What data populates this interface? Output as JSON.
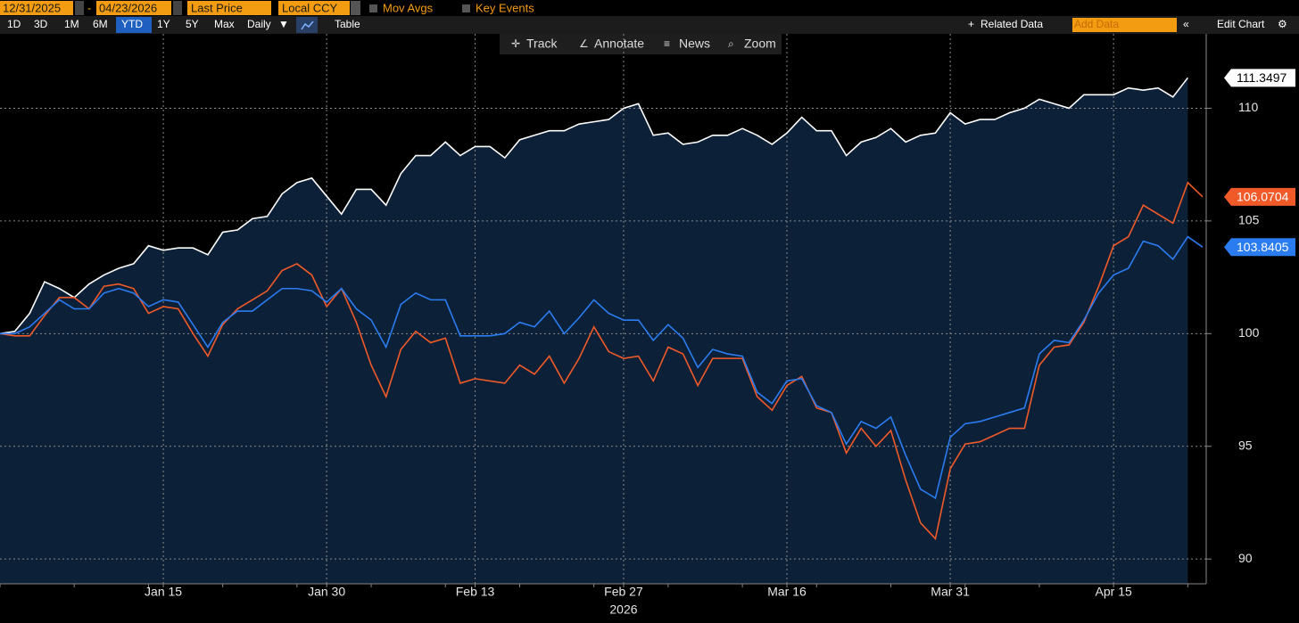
{
  "toolbar": {
    "start_date": "12/31/2025",
    "end_date": "04/23/2026",
    "field": "Last Price",
    "currency": "Local CCY",
    "mov_avgs": "Mov Avgs",
    "key_events": "Key Events",
    "periods": [
      "1D",
      "3D",
      "1M",
      "6M",
      "YTD",
      "1Y",
      "5Y",
      "Max"
    ],
    "active_period": "YTD",
    "frequency": "Daily",
    "table": "Table",
    "related_data": "Related Data",
    "add_data": "Add Data",
    "edit_chart": "Edit Chart",
    "tools": [
      "Track",
      "Annotate",
      "News",
      "Zoom"
    ]
  },
  "chart_data": {
    "type": "line",
    "xlabel": "2026",
    "categories": [
      null,
      null,
      null,
      null,
      null,
      null,
      null,
      null,
      null,
      null,
      null,
      "Jan 15",
      null,
      null,
      null,
      null,
      null,
      null,
      null,
      null,
      null,
      null,
      "Jan 30",
      null,
      null,
      null,
      null,
      null,
      null,
      null,
      null,
      null,
      "Feb 13",
      null,
      null,
      null,
      null,
      null,
      null,
      null,
      null,
      null,
      "Feb 27",
      null,
      null,
      null,
      null,
      null,
      null,
      null,
      null,
      null,
      null,
      "Mar 16",
      null,
      null,
      null,
      null,
      null,
      null,
      null,
      null,
      null,
      null,
      "Mar 31",
      null,
      null,
      null,
      null,
      null,
      null,
      null,
      null,
      null,
      null,
      "Apr 15",
      null,
      null,
      null,
      null,
      null,
      null
    ],
    "series": [
      {
        "color": "#ffffff",
        "fill": "#0c2038",
        "values": [
          100,
          100.1,
          100.9,
          102.3,
          102.0,
          101.6,
          102.2,
          102.6,
          102.9,
          103.1,
          103.9,
          103.7,
          103.8,
          103.8,
          103.5,
          104.5,
          104.6,
          105.1,
          105.2,
          106.2,
          106.7,
          106.9,
          106.1,
          105.3,
          106.4,
          106.4,
          105.7,
          107.1,
          107.9,
          107.9,
          108.5,
          107.9,
          108.3,
          108.3,
          107.8,
          108.6,
          108.8,
          109.0,
          109.0,
          109.3,
          109.4,
          109.5,
          110.0,
          110.2,
          108.8,
          108.9,
          108.4,
          108.5,
          108.8,
          108.8,
          109.1,
          108.8,
          108.4,
          108.9,
          109.6,
          109.0,
          109.0,
          107.9,
          108.5,
          108.7,
          109.1,
          108.5,
          108.8,
          108.9,
          109.8,
          109.3,
          109.5,
          109.5,
          109.8,
          110.0,
          110.4,
          110.2,
          110.0,
          110.6,
          110.6,
          110.6,
          110.9,
          110.8,
          110.9,
          110.5,
          111.3497,
          null
        ]
      },
      {
        "color": "#f05a28",
        "values": [
          100,
          99.9,
          99.9,
          100.8,
          101.6,
          101.6,
          101.1,
          102.1,
          102.2,
          102.0,
          100.9,
          101.2,
          101.1,
          100.0,
          99.0,
          100.4,
          101.1,
          101.5,
          101.9,
          102.8,
          103.1,
          102.6,
          101.2,
          102.0,
          100.5,
          98.6,
          97.2,
          99.3,
          100.1,
          99.6,
          99.8,
          97.8,
          98.0,
          97.9,
          97.8,
          98.6,
          98.2,
          99.0,
          97.8,
          98.9,
          100.3,
          99.2,
          98.9,
          99.0,
          97.9,
          99.4,
          99.1,
          97.7,
          98.9,
          98.9,
          98.9,
          97.2,
          96.6,
          97.7,
          98.1,
          96.7,
          96.5,
          94.7,
          95.8,
          95.0,
          95.7,
          93.5,
          91.6,
          90.9,
          94.0,
          95.1,
          95.2,
          95.5,
          95.8,
          95.8,
          98.6,
          99.4,
          99.5,
          100.5,
          102.1,
          103.9,
          104.3,
          105.7,
          105.3,
          104.9,
          106.7,
          106.0704
        ]
      },
      {
        "color": "#2b7cf0",
        "values": [
          100,
          100.0,
          100.3,
          100.9,
          101.5,
          101.1,
          101.1,
          101.8,
          102.0,
          101.8,
          101.2,
          101.5,
          101.4,
          100.4,
          99.4,
          100.5,
          101.0,
          101.0,
          101.5,
          102.0,
          102.0,
          101.9,
          101.4,
          102.0,
          101.1,
          100.6,
          99.4,
          101.3,
          101.8,
          101.5,
          101.5,
          99.9,
          99.9,
          99.9,
          100.0,
          100.5,
          100.3,
          101.0,
          100.0,
          100.7,
          101.5,
          100.9,
          100.6,
          100.6,
          99.7,
          100.4,
          99.8,
          98.5,
          99.3,
          99.1,
          99.0,
          97.4,
          96.9,
          97.9,
          98.0,
          96.8,
          96.5,
          95.1,
          96.1,
          95.8,
          96.3,
          94.6,
          93.1,
          92.7,
          95.4,
          96.0,
          96.1,
          96.3,
          96.5,
          96.7,
          99.1,
          99.7,
          99.6,
          100.6,
          101.8,
          102.6,
          102.9,
          104.1,
          103.9,
          103.3,
          104.3,
          103.8405
        ]
      }
    ],
    "ylim": [
      88.9,
      113.3
    ],
    "yticks": [
      90,
      95,
      100,
      105,
      110
    ],
    "grid": true
  }
}
